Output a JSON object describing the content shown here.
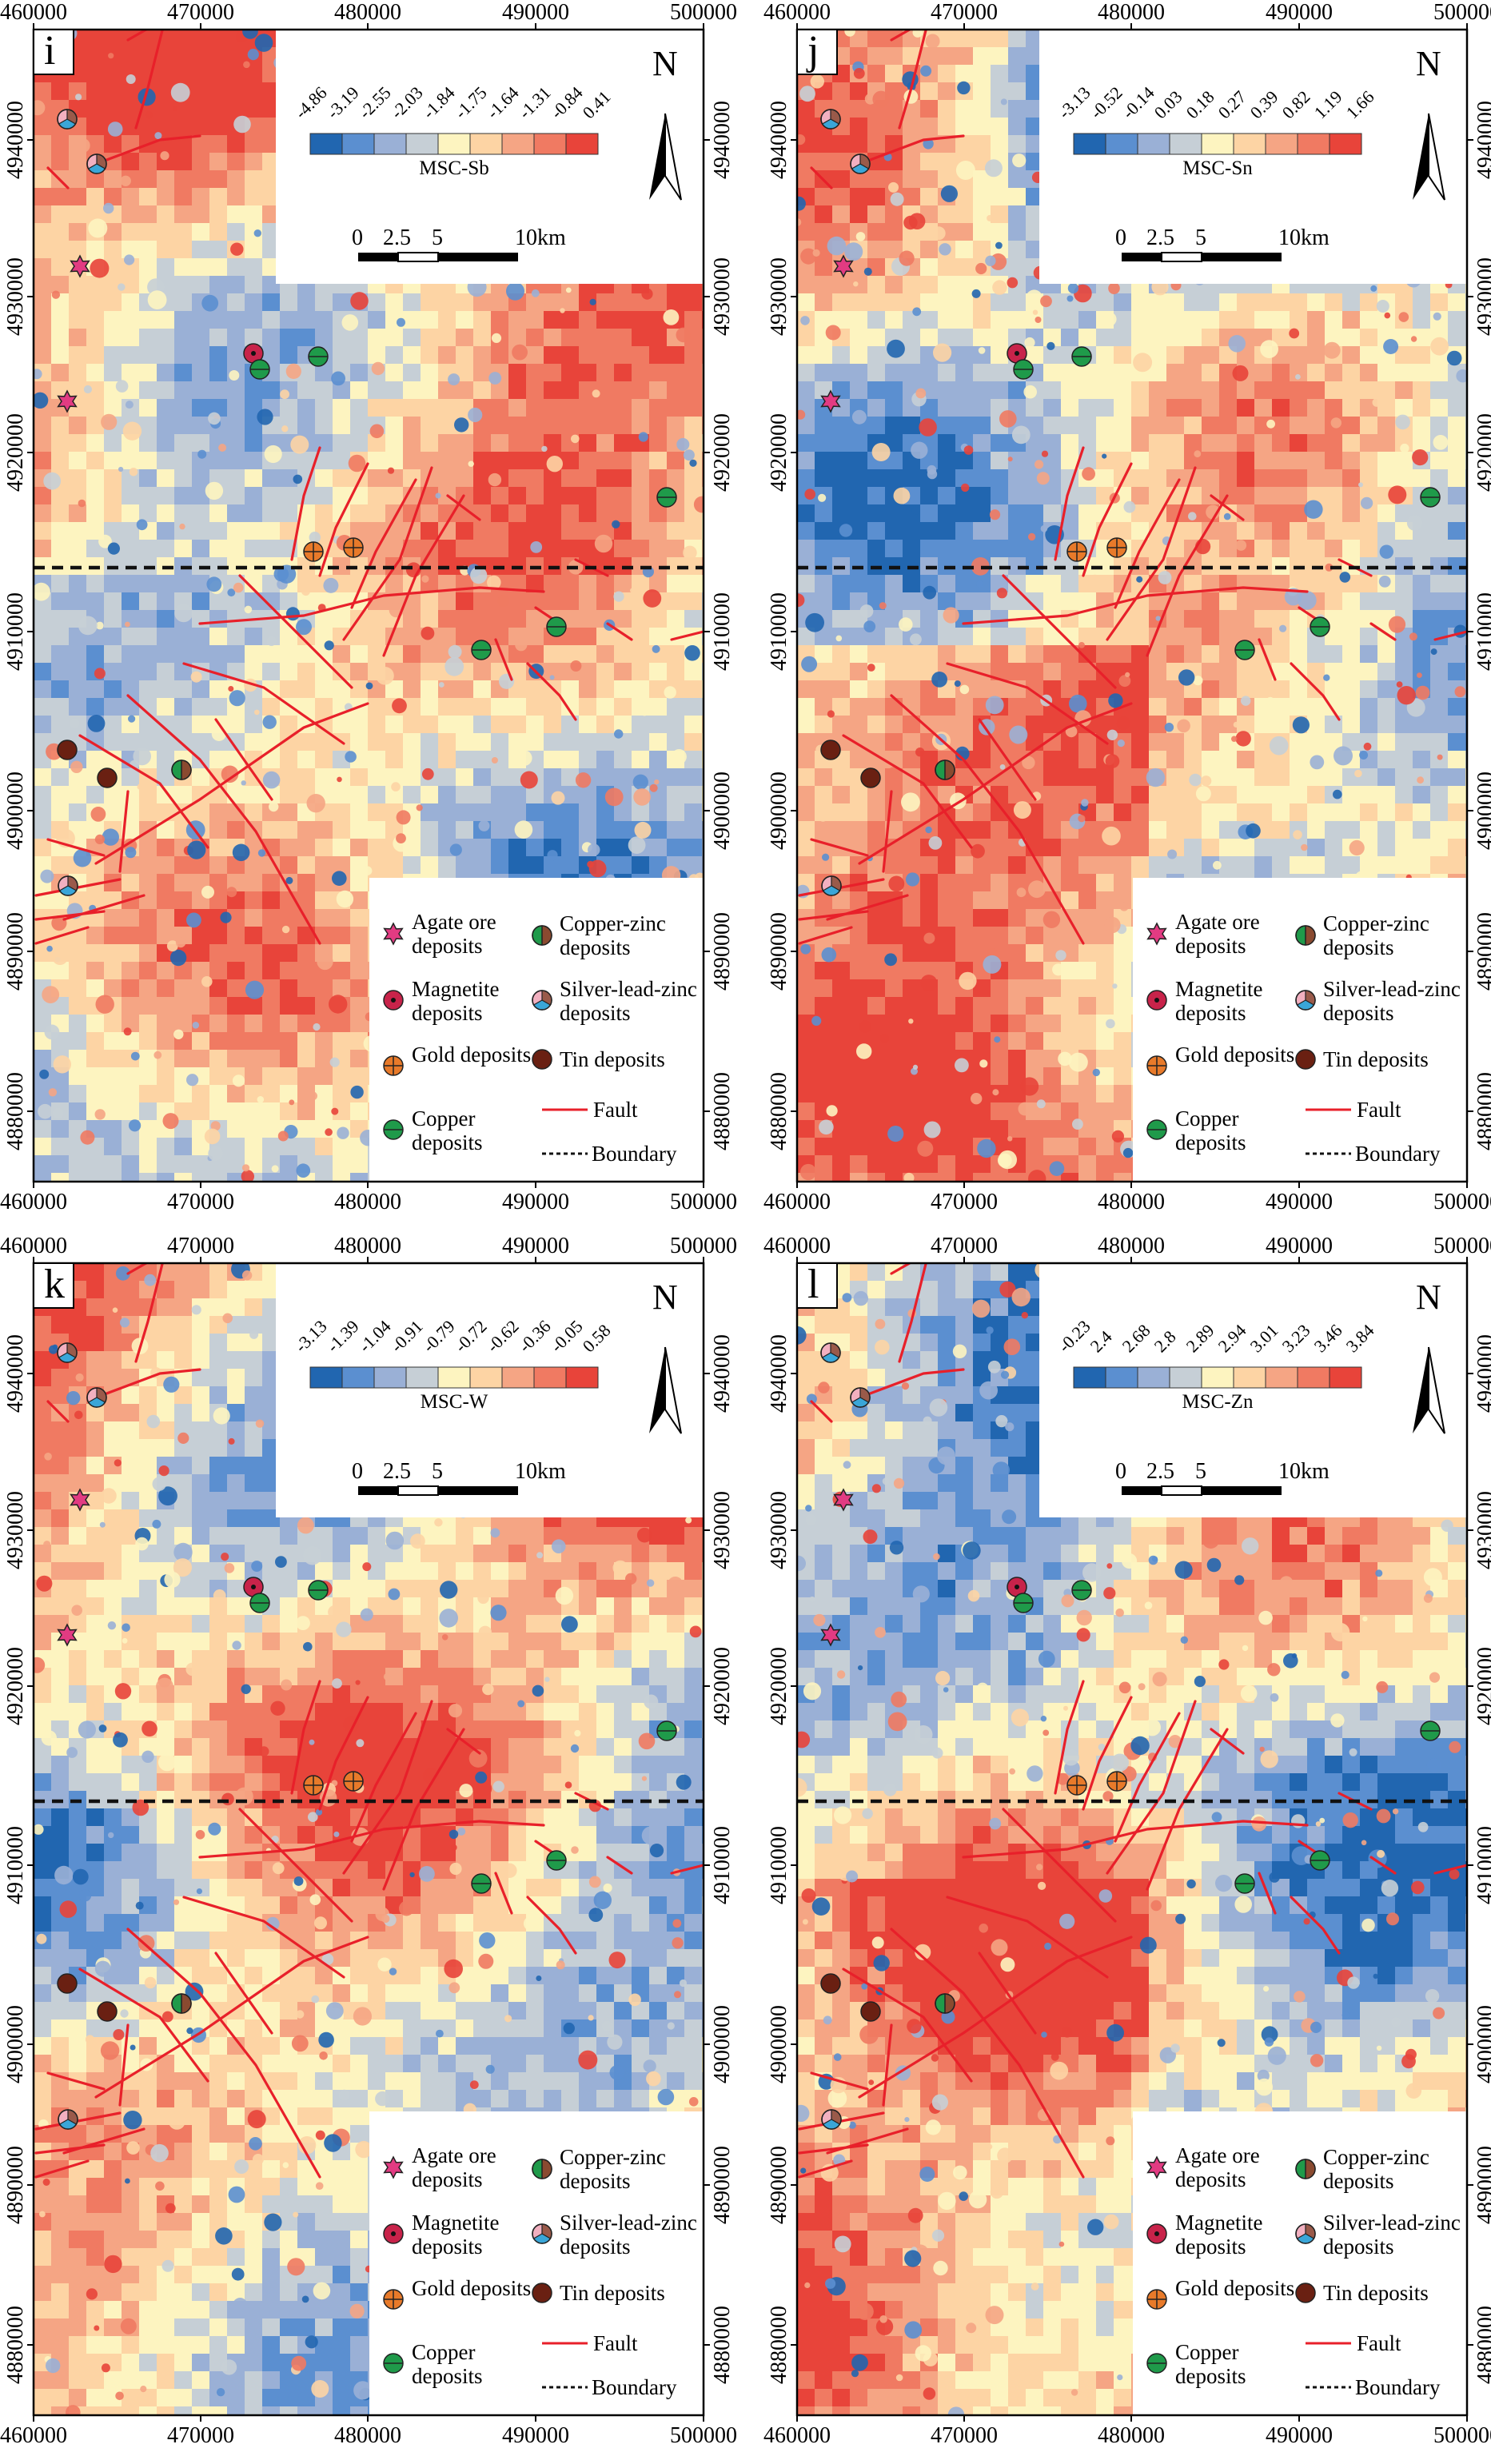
{
  "x_ticks": [
    "460000",
    "470000",
    "480000",
    "490000",
    "500000"
  ],
  "y_ticks": [
    "4940000",
    "4930000",
    "4920000",
    "4910000",
    "4900000",
    "4890000",
    "4880000"
  ],
  "colors": {
    "ramp": [
      "#2166b0",
      "#5b8fd0",
      "#9ab0d6",
      "#c6cfd6",
      "#fdf4c0",
      "#fdd4a4",
      "#f5a584",
      "#f07a62",
      "#e8443a"
    ],
    "fault": "#e8202a",
    "agate": "#e23b82",
    "magnetite": "#c8234a",
    "gold": "#e87a2a",
    "copper": "#1f9a4a",
    "copper_zinc_a": "#1f9a4a",
    "copper_zinc_b": "#8a4a30",
    "silver_a": "#f2b0c0",
    "silver_b": "#3aa6d8",
    "silver_c": "#9a5a4a",
    "tin": "#6a2012"
  },
  "north": "N",
  "scale_bar": {
    "labels": [
      "0",
      "2.5",
      "5",
      "10km"
    ]
  },
  "legend": {
    "agate": "Agate ore deposits",
    "magnetite": "Magnetite deposits",
    "gold": "Gold deposits",
    "copper": "Copper deposits",
    "copper_zinc": "Copper-zinc deposits",
    "silver": "Silver-lead-zinc deposits",
    "tin": "Tin deposits",
    "fault": "Fault",
    "boundary": "Boundary"
  },
  "panels": [
    {
      "letter": "i",
      "title": "MSC-Sb",
      "ticks": [
        "-4.86",
        "-3.19",
        "-2.55",
        "-2.03",
        "-1.84",
        "-1.75",
        "-1.64",
        "-1.31",
        "-0.84",
        "0.41"
      ]
    },
    {
      "letter": "j",
      "title": "MSC-Sn",
      "ticks": [
        "-3.13",
        "-0.52",
        "-0.14",
        "0.03",
        "0.18",
        "0.27",
        "0.39",
        "0.82",
        "1.19",
        "1.66"
      ]
    },
    {
      "letter": "k",
      "title": "MSC-W",
      "ticks": [
        "-3.13",
        "-1.39",
        "-1.04",
        "-0.91",
        "-0.79",
        "-0.72",
        "-0.62",
        "-0.36",
        "-0.05",
        "0.58"
      ]
    },
    {
      "letter": "l",
      "title": "MSC-Zn",
      "ticks": [
        "-0.23",
        "2.4",
        "2.68",
        "2.8",
        "2.89",
        "2.94",
        "3.01",
        "3.23",
        "3.46",
        "3.84"
      ]
    }
  ]
}
